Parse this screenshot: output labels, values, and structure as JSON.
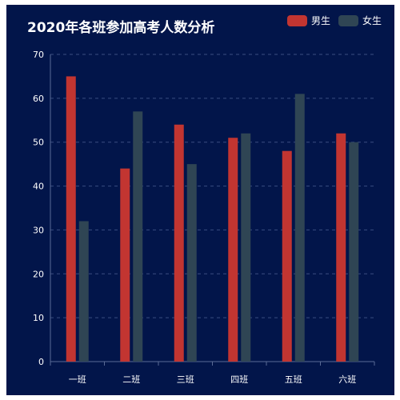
{
  "chart_data": {
    "type": "bar",
    "title": "2020年各班参加高考人数分析",
    "categories": [
      "一班",
      "二班",
      "三班",
      "四班",
      "五班",
      "六班"
    ],
    "series": [
      {
        "name": "男生",
        "color": "#c23531",
        "values": [
          65,
          44,
          54,
          51,
          48,
          52
        ]
      },
      {
        "name": "女生",
        "color": "#2f4554",
        "values": [
          32,
          57,
          45,
          52,
          61,
          50
        ]
      }
    ],
    "ylim": [
      0,
      70
    ],
    "yticks": [
      "0",
      "10",
      "20",
      "30",
      "40",
      "50",
      "60",
      "70"
    ],
    "grid": true,
    "legend_position": "top-right"
  }
}
